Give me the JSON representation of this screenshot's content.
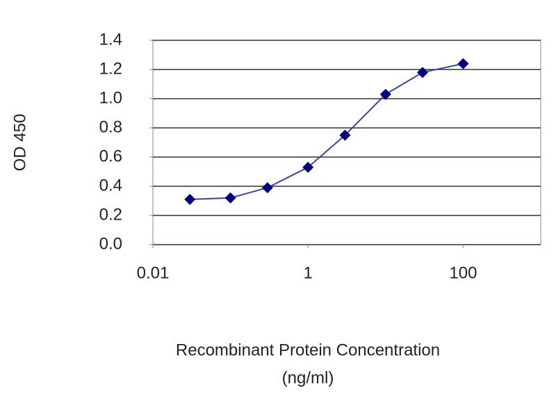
{
  "chart_data": {
    "type": "line",
    "ylabel": "OD 450",
    "xlabel": [
      "Recombinant Protein Concentration",
      "(ng/ml)"
    ],
    "x": [
      0.03,
      0.1,
      0.3,
      1,
      3,
      10,
      30,
      100
    ],
    "series": [
      {
        "color": "#000080",
        "values": [
          0.31,
          0.32,
          0.39,
          0.53,
          0.75,
          1.03,
          1.18,
          1.24
        ]
      }
    ],
    "xscale": "log",
    "xlim": [
      0.01,
      1000
    ],
    "xticks": [
      0.01,
      1,
      100
    ],
    "ylim": [
      0,
      1.4
    ],
    "yticks": [
      {
        "value": 0,
        "label": "0.0"
      },
      0.2,
      0.4,
      0.6,
      0.8,
      {
        "value": 1,
        "label": "1.0"
      },
      1.2,
      1.4
    ],
    "grid": true
  }
}
